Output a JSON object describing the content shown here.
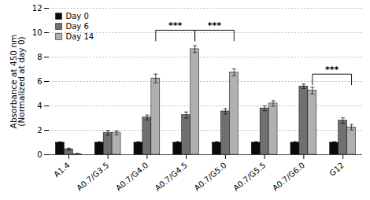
{
  "chart_data": {
    "type": "bar",
    "categories": [
      "A1.4",
      "A0.7/G3.5",
      "A0.7/G4.0",
      "A0.7/G4.5",
      "A0.7/G5.0",
      "A0.7/G5.5",
      "A0.7/G6.0",
      "G12"
    ],
    "series": [
      {
        "name": "Day 0",
        "color": "#0a0a0a",
        "values": [
          1.0,
          1.0,
          1.0,
          1.0,
          1.0,
          1.0,
          1.0,
          1.0
        ],
        "errors": [
          0.06,
          0.06,
          0.07,
          0.07,
          0.07,
          0.07,
          0.07,
          0.07
        ]
      },
      {
        "name": "Day 6",
        "color": "#707070",
        "values": [
          0.45,
          1.8,
          3.05,
          3.25,
          3.55,
          3.8,
          5.6,
          2.8
        ],
        "errors": [
          0.08,
          0.18,
          0.2,
          0.25,
          0.22,
          0.2,
          0.18,
          0.22
        ]
      },
      {
        "name": "Day 14",
        "color": "#b0b0b0",
        "values": [
          0.05,
          1.8,
          6.25,
          8.65,
          6.75,
          4.2,
          5.25,
          2.25
        ],
        "errors": [
          0.06,
          0.15,
          0.35,
          0.28,
          0.28,
          0.22,
          0.28,
          0.22
        ]
      }
    ],
    "ylabel": "Absorbance at 450 nm\n(Normalized at day 0)",
    "ylim": [
      0,
      12
    ],
    "yticks": [
      0,
      2,
      4,
      6,
      8,
      10,
      12
    ],
    "grid": true,
    "legend": "upper left",
    "annotations": [
      {
        "text": "***",
        "from": "A0.7/G4.0",
        "to": "A0.7/G4.5",
        "series": "Day 14",
        "y_top": 10.2,
        "y_bottom": 9.3
      },
      {
        "text": "***",
        "from": "A0.7/G4.5",
        "to": "A0.7/G5.0",
        "series": "Day 14",
        "y_top": 10.2,
        "y_bottom": 9.3
      },
      {
        "text": "***",
        "from": "A0.7/G6.0",
        "to": "G12",
        "series": "Day 14",
        "y_top": 6.6,
        "y_bottom": 5.7
      }
    ]
  }
}
